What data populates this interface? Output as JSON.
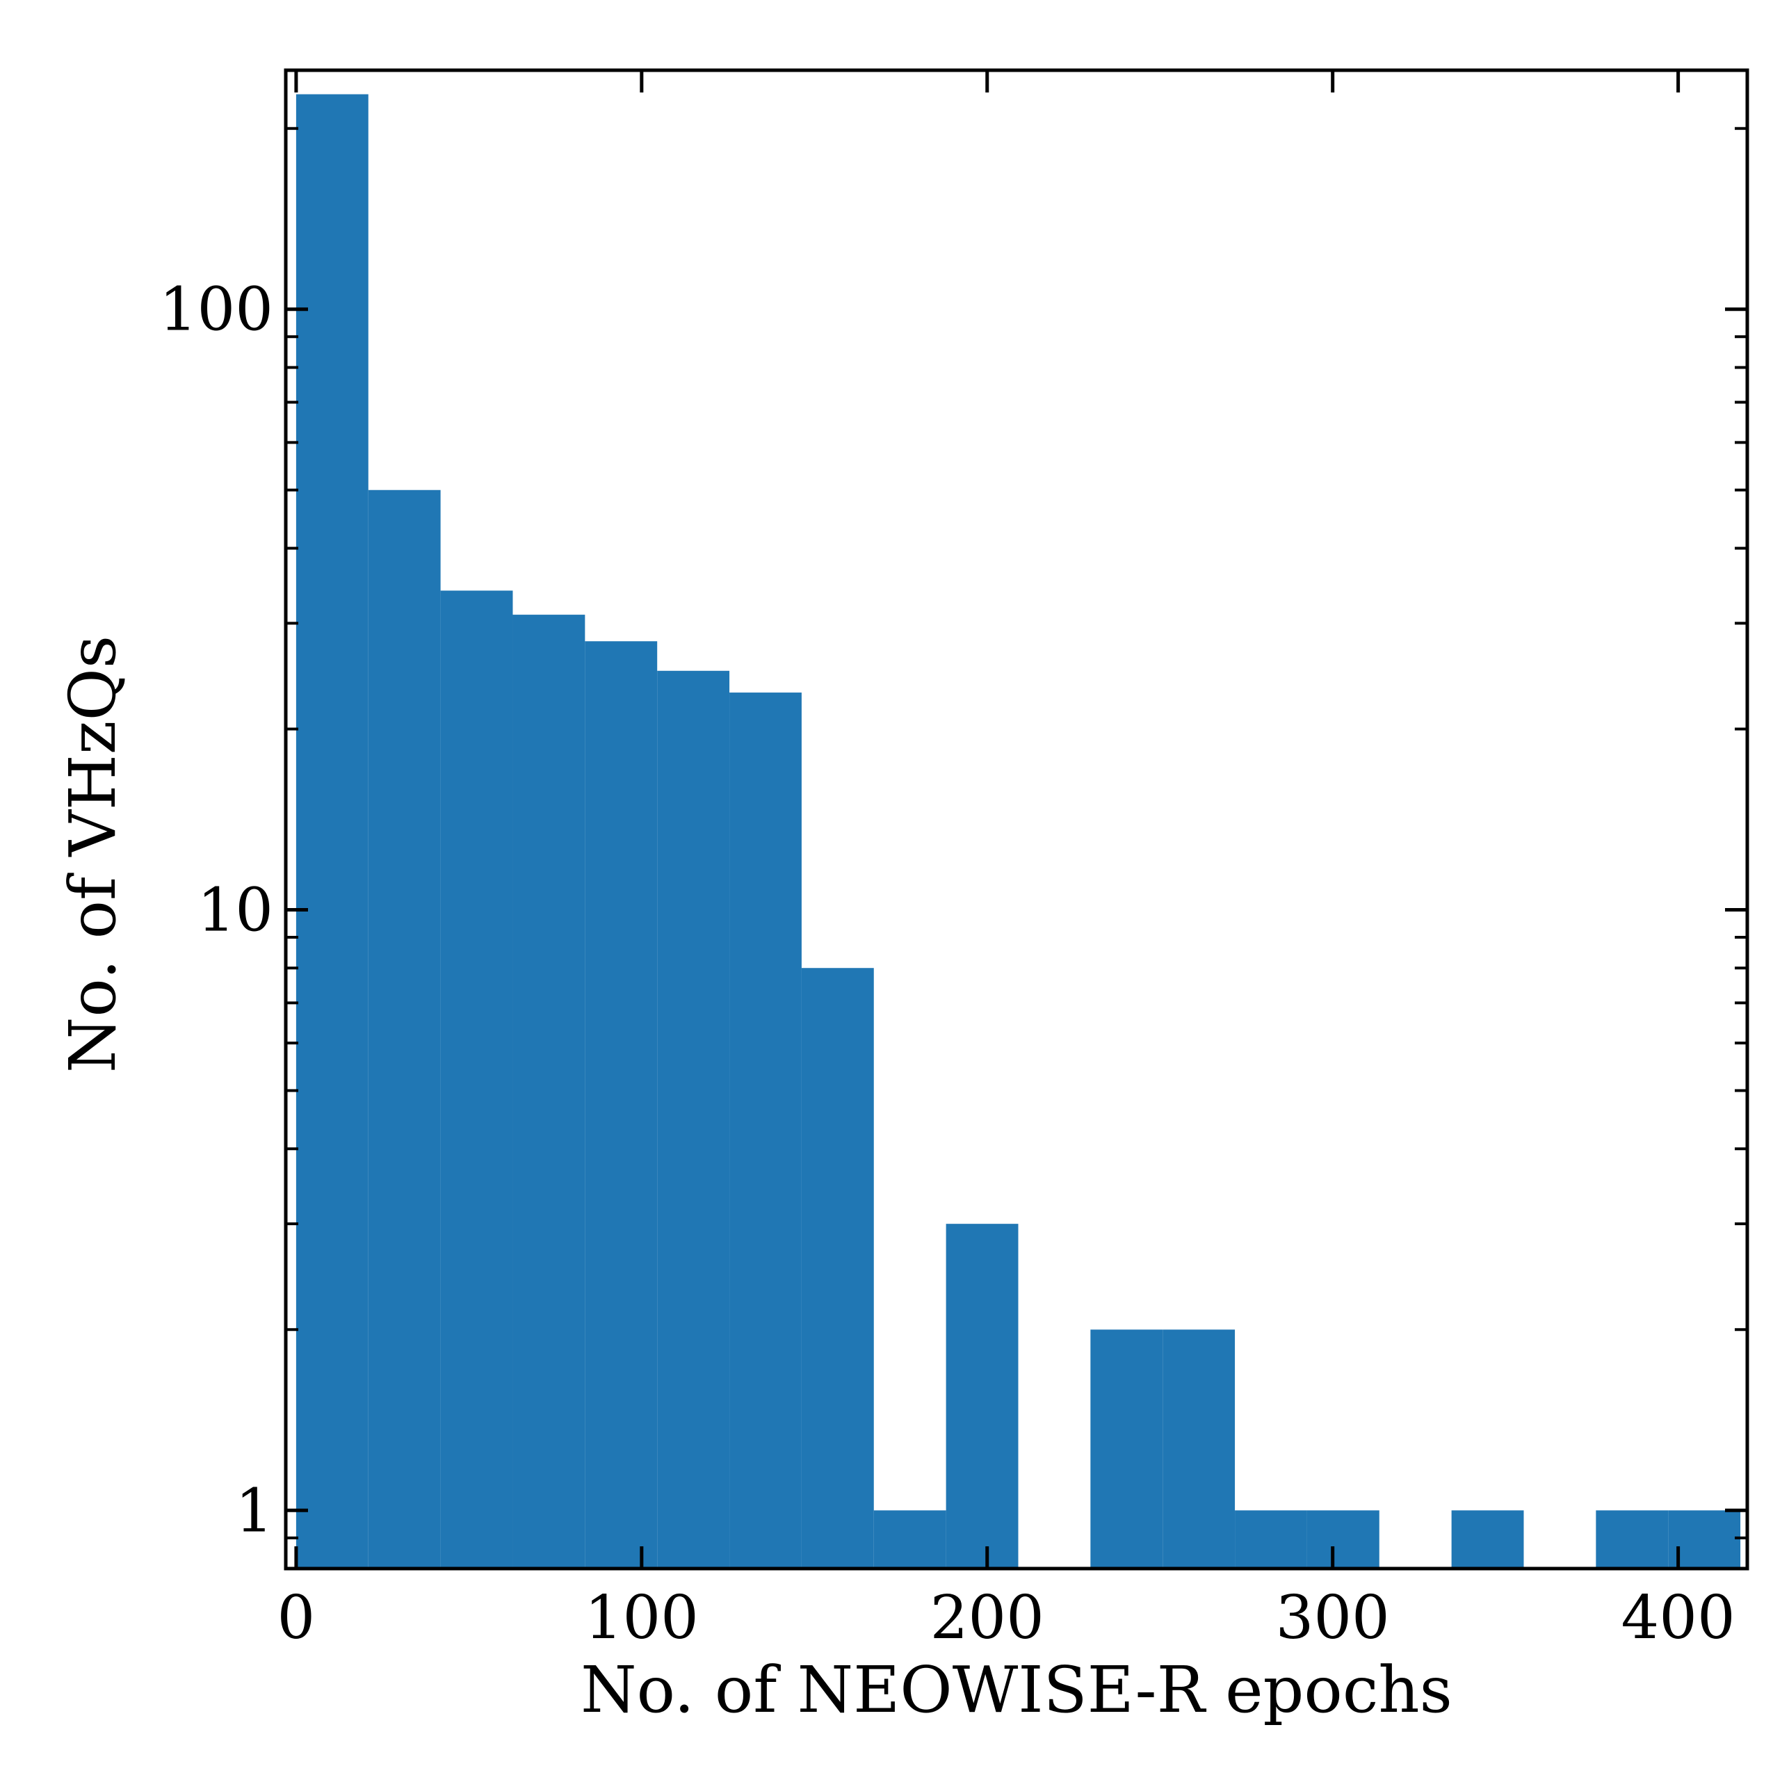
{
  "chart_data": {
    "type": "bar",
    "subtype": "histogram",
    "xlabel": "No. of NEOWISE-R epochs",
    "ylabel": "No. of VHzQs",
    "xlim": [
      -3,
      420
    ],
    "ylim": [
      0.8,
      250
    ],
    "yscale": "log",
    "grid": false,
    "bar_color": "#2077b4",
    "bin_width": 20.9,
    "bin_starts": [
      0.0,
      20.9,
      41.8,
      62.7,
      83.6,
      104.5,
      125.4,
      146.3,
      167.2,
      188.1,
      209.0,
      229.9,
      250.8,
      271.7,
      292.6,
      313.5,
      334.4,
      355.3,
      376.2,
      397.1
    ],
    "values": [
      228,
      50,
      34,
      31,
      28,
      25,
      23,
      8,
      1,
      3,
      0,
      2,
      2,
      1,
      1,
      0,
      1,
      0,
      1,
      1
    ],
    "xticks": [
      0,
      100,
      200,
      300,
      400
    ],
    "xtick_labels": [
      "0",
      "100",
      "200",
      "300",
      "400"
    ],
    "yticks": [
      1,
      10,
      100
    ],
    "ytick_labels": [
      "1",
      "10",
      "100"
    ]
  }
}
